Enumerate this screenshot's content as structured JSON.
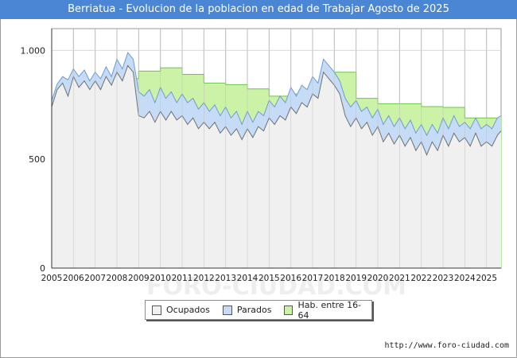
{
  "title": "Berriatua - Evolucion de la poblacion en edad de Trabajar Agosto de 2025",
  "source": "http://www.foro-ciudad.com",
  "watermark": "FORO-CIUDAD.COM",
  "colors": {
    "title_bg": "#4a86d4",
    "ocupados": "#f0f0f0",
    "parados": "#c6dcf6",
    "hab": "#ccf2a8",
    "line_ocupados": "#707070",
    "line_parados": "#6e9ad6",
    "line_hab": "#6fc24a"
  },
  "legend": [
    {
      "label": "Ocupados",
      "color": "#f0f0f0"
    },
    {
      "label": "Parados",
      "color": "#c6dcf6"
    },
    {
      "label": "Hab. entre 16-64",
      "color": "#ccf2a8"
    }
  ],
  "chart_data": {
    "type": "area",
    "title": "Berriatua - Evolucion de la poblacion en edad de Trabajar Agosto de 2025",
    "xlabel": "",
    "ylabel": "",
    "xlim": [
      2005,
      2025.67
    ],
    "ylim": [
      0,
      1100
    ],
    "yticks": [
      0,
      500,
      1000
    ],
    "ytick_labels": [
      "0",
      "500",
      "1.000"
    ],
    "xticks": [
      "2005",
      "2006",
      "2007",
      "2008",
      "2009",
      "2010",
      "2011",
      "2012",
      "2013",
      "2014",
      "2015",
      "2016",
      "2017",
      "2018",
      "2019",
      "2020",
      "2021",
      "2022",
      "2023",
      "2024",
      "2025"
    ],
    "grid": true,
    "legend_position": "bottom",
    "hab_step": {
      "x": [
        2008.75,
        2009.0,
        2010.0,
        2011.0,
        2012.0,
        2013.0,
        2014.0,
        2015.0,
        2016.0,
        2017.0,
        2018.0,
        2019.0,
        2020.0,
        2021.0,
        2022.0,
        2023.0,
        2024.0
      ],
      "values": [
        870,
        905,
        920,
        890,
        850,
        843,
        823,
        790,
        800,
        800,
        900,
        780,
        755,
        755,
        742,
        738,
        690
      ]
    },
    "series": [
      {
        "name": "Parados",
        "points": [
          [
            2005.0,
            770
          ],
          [
            2005.25,
            845
          ],
          [
            2005.5,
            880
          ],
          [
            2005.75,
            865
          ],
          [
            2006.0,
            915
          ],
          [
            2006.25,
            880
          ],
          [
            2006.5,
            910
          ],
          [
            2006.75,
            860
          ],
          [
            2007.0,
            900
          ],
          [
            2007.25,
            870
          ],
          [
            2007.5,
            925
          ],
          [
            2007.75,
            880
          ],
          [
            2008.0,
            960
          ],
          [
            2008.25,
            915
          ],
          [
            2008.5,
            990
          ],
          [
            2008.75,
            960
          ],
          [
            2009.0,
            810
          ],
          [
            2009.25,
            790
          ],
          [
            2009.5,
            820
          ],
          [
            2009.75,
            760
          ],
          [
            2010.0,
            830
          ],
          [
            2010.25,
            780
          ],
          [
            2010.5,
            810
          ],
          [
            2010.75,
            760
          ],
          [
            2011.0,
            800
          ],
          [
            2011.25,
            760
          ],
          [
            2011.5,
            780
          ],
          [
            2011.75,
            730
          ],
          [
            2012.0,
            760
          ],
          [
            2012.25,
            720
          ],
          [
            2012.5,
            750
          ],
          [
            2012.75,
            700
          ],
          [
            2013.0,
            740
          ],
          [
            2013.25,
            690
          ],
          [
            2013.5,
            720
          ],
          [
            2013.75,
            660
          ],
          [
            2014.0,
            720
          ],
          [
            2014.25,
            670
          ],
          [
            2014.5,
            720
          ],
          [
            2014.75,
            700
          ],
          [
            2015.0,
            770
          ],
          [
            2015.25,
            740
          ],
          [
            2015.5,
            790
          ],
          [
            2015.75,
            760
          ],
          [
            2016.0,
            830
          ],
          [
            2016.25,
            790
          ],
          [
            2016.5,
            840
          ],
          [
            2016.75,
            820
          ],
          [
            2017.0,
            880
          ],
          [
            2017.25,
            850
          ],
          [
            2017.5,
            960
          ],
          [
            2017.75,
            930
          ],
          [
            2018.0,
            900
          ],
          [
            2018.25,
            860
          ],
          [
            2018.5,
            780
          ],
          [
            2018.75,
            740
          ],
          [
            2019.0,
            770
          ],
          [
            2019.25,
            720
          ],
          [
            2019.5,
            740
          ],
          [
            2019.75,
            690
          ],
          [
            2020.0,
            730
          ],
          [
            2020.25,
            660
          ],
          [
            2020.5,
            700
          ],
          [
            2020.75,
            650
          ],
          [
            2021.0,
            690
          ],
          [
            2021.25,
            640
          ],
          [
            2021.5,
            680
          ],
          [
            2021.75,
            620
          ],
          [
            2022.0,
            660
          ],
          [
            2022.25,
            610
          ],
          [
            2022.5,
            660
          ],
          [
            2022.75,
            620
          ],
          [
            2023.0,
            690
          ],
          [
            2023.25,
            640
          ],
          [
            2023.5,
            700
          ],
          [
            2023.75,
            650
          ],
          [
            2024.0,
            670
          ],
          [
            2024.25,
            640
          ],
          [
            2024.5,
            690
          ],
          [
            2024.75,
            640
          ],
          [
            2025.0,
            660
          ],
          [
            2025.25,
            640
          ],
          [
            2025.5,
            690
          ],
          [
            2025.67,
            700
          ]
        ]
      },
      {
        "name": "Ocupados",
        "points": [
          [
            2005.0,
            740
          ],
          [
            2005.25,
            820
          ],
          [
            2005.5,
            850
          ],
          [
            2005.75,
            790
          ],
          [
            2006.0,
            880
          ],
          [
            2006.25,
            830
          ],
          [
            2006.5,
            860
          ],
          [
            2006.75,
            820
          ],
          [
            2007.0,
            860
          ],
          [
            2007.25,
            820
          ],
          [
            2007.5,
            880
          ],
          [
            2007.75,
            840
          ],
          [
            2008.0,
            900
          ],
          [
            2008.25,
            860
          ],
          [
            2008.5,
            930
          ],
          [
            2008.75,
            900
          ],
          [
            2009.0,
            700
          ],
          [
            2009.25,
            690
          ],
          [
            2009.5,
            720
          ],
          [
            2009.75,
            670
          ],
          [
            2010.0,
            720
          ],
          [
            2010.25,
            680
          ],
          [
            2010.5,
            720
          ],
          [
            2010.75,
            680
          ],
          [
            2011.0,
            700
          ],
          [
            2011.25,
            660
          ],
          [
            2011.5,
            690
          ],
          [
            2011.75,
            640
          ],
          [
            2012.0,
            670
          ],
          [
            2012.25,
            640
          ],
          [
            2012.5,
            670
          ],
          [
            2012.75,
            620
          ],
          [
            2013.0,
            650
          ],
          [
            2013.25,
            610
          ],
          [
            2013.5,
            640
          ],
          [
            2013.75,
            590
          ],
          [
            2014.0,
            640
          ],
          [
            2014.25,
            600
          ],
          [
            2014.5,
            650
          ],
          [
            2014.75,
            630
          ],
          [
            2015.0,
            690
          ],
          [
            2015.25,
            660
          ],
          [
            2015.5,
            700
          ],
          [
            2015.75,
            680
          ],
          [
            2016.0,
            740
          ],
          [
            2016.25,
            710
          ],
          [
            2016.5,
            760
          ],
          [
            2016.75,
            740
          ],
          [
            2017.0,
            800
          ],
          [
            2017.25,
            780
          ],
          [
            2017.5,
            900
          ],
          [
            2017.75,
            870
          ],
          [
            2018.0,
            840
          ],
          [
            2018.25,
            800
          ],
          [
            2018.5,
            700
          ],
          [
            2018.75,
            650
          ],
          [
            2019.0,
            690
          ],
          [
            2019.25,
            640
          ],
          [
            2019.5,
            670
          ],
          [
            2019.75,
            610
          ],
          [
            2020.0,
            650
          ],
          [
            2020.25,
            580
          ],
          [
            2020.5,
            620
          ],
          [
            2020.75,
            570
          ],
          [
            2021.0,
            610
          ],
          [
            2021.25,
            560
          ],
          [
            2021.5,
            600
          ],
          [
            2021.75,
            540
          ],
          [
            2022.0,
            580
          ],
          [
            2022.25,
            520
          ],
          [
            2022.5,
            580
          ],
          [
            2022.75,
            540
          ],
          [
            2023.0,
            610
          ],
          [
            2023.25,
            560
          ],
          [
            2023.5,
            620
          ],
          [
            2023.75,
            580
          ],
          [
            2024.0,
            600
          ],
          [
            2024.25,
            560
          ],
          [
            2024.5,
            620
          ],
          [
            2024.75,
            560
          ],
          [
            2025.0,
            580
          ],
          [
            2025.25,
            560
          ],
          [
            2025.5,
            610
          ],
          [
            2025.67,
            630
          ]
        ]
      }
    ]
  }
}
